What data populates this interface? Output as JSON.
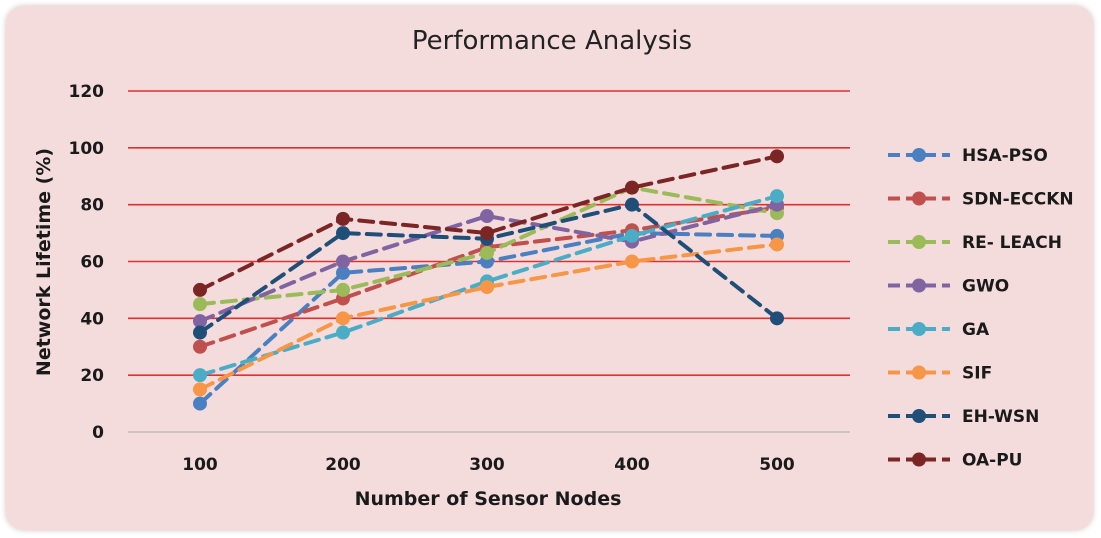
{
  "chart_data": {
    "type": "line",
    "title": "Performance Analysis",
    "xlabel": "Number of Sensor Nodes",
    "ylabel": "Network Lifetime (%)",
    "x": [
      100,
      200,
      300,
      400,
      500
    ],
    "x_tick_labels": [
      "100",
      "200",
      "300",
      "400",
      "500"
    ],
    "ylim": [
      0,
      120
    ],
    "y_ticks": [
      0,
      20,
      40,
      60,
      80,
      100,
      120
    ],
    "y_tick_labels": [
      "0",
      "20",
      "40",
      "60",
      "80",
      "100",
      "120"
    ],
    "grid": true,
    "grid_color": "#e03030",
    "legend_position": "right",
    "line_style": "dashed",
    "series": [
      {
        "name": "HSA-PSO",
        "color": "#4a7fc1",
        "values": [
          10,
          56,
          60,
          70,
          69
        ]
      },
      {
        "name": "SDN-ECCKN",
        "color": "#c0504d",
        "values": [
          30,
          47,
          65,
          71,
          79
        ]
      },
      {
        "name": "RE- LEACH",
        "color": "#9bbb59",
        "values": [
          45,
          50,
          63,
          86,
          77
        ]
      },
      {
        "name": "GWO",
        "color": "#8064a2",
        "values": [
          39,
          60,
          76,
          67,
          80
        ]
      },
      {
        "name": "GA",
        "color": "#4bacc6",
        "values": [
          20,
          35,
          53,
          69,
          83
        ]
      },
      {
        "name": "SIF",
        "color": "#f79646",
        "values": [
          15,
          40,
          51,
          60,
          66
        ]
      },
      {
        "name": "EH-WSN",
        "color": "#1f4e79",
        "values": [
          35,
          70,
          68,
          80,
          40
        ]
      },
      {
        "name": "OA-PU",
        "color": "#7b2525",
        "values": [
          50,
          75,
          70,
          86,
          97
        ]
      }
    ]
  }
}
